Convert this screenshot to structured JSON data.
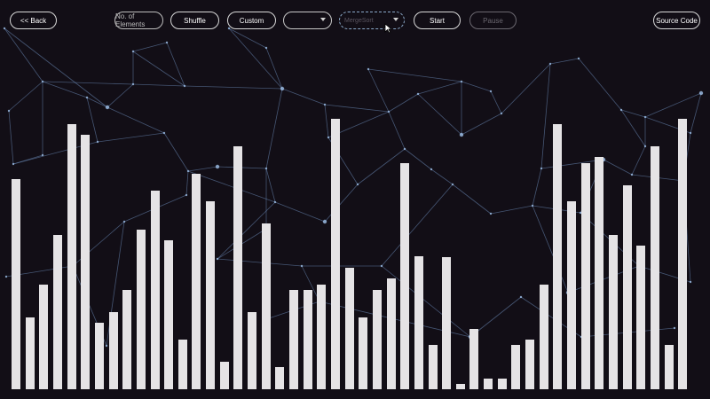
{
  "toolbar": {
    "back_label": "<< Back",
    "elements_label": "No. of Elements",
    "shuffle_label": "Shuffle",
    "custom_label": "Custom",
    "speed_select_value": "",
    "algorithm_select_value": "MergeSort",
    "start_label": "Start",
    "pause_label": "Pause",
    "source_label": "Source Code"
  },
  "colors": {
    "background": "#120e16",
    "bar": "#e5e3e5",
    "network": "#6f8fbf"
  },
  "icons": [
    "chevron-down-icon",
    "mouse-cursor-icon"
  ],
  "chart_data": {
    "type": "bar",
    "values": [
      237,
      81,
      118,
      174,
      299,
      287,
      75,
      87,
      112,
      180,
      224,
      168,
      56,
      243,
      212,
      31,
      274,
      87,
      187,
      25,
      112,
      112,
      118,
      305,
      137,
      81,
      112,
      125,
      255,
      150,
      50,
      149,
      6,
      68,
      12,
      12,
      50,
      56,
      118,
      299,
      212,
      255,
      262,
      174,
      230,
      162,
      274,
      50,
      305
    ],
    "ylim": [
      0,
      330
    ]
  }
}
